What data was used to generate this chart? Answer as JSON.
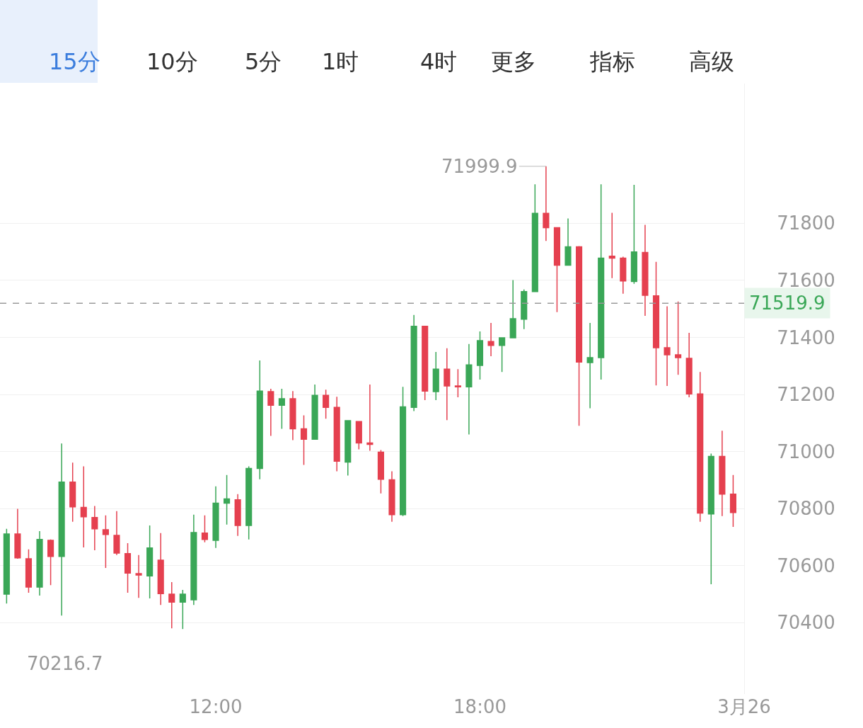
{
  "chart_data": {
    "type": "candlestick",
    "annotations": [
      "15分",
      "10分",
      "5分",
      "1时",
      "4时",
      "更多",
      "指标",
      "高级",
      {
        "text": "71999.9",
        "x": 19.5,
        "y": 71999.9
      },
      "70216.7"
    ],
    "x": [
      7.25,
      7.5,
      7.75,
      8,
      8.25,
      8.5,
      8.75,
      9,
      9.25,
      9.5,
      9.75,
      10,
      10.25,
      10.5,
      10.75,
      11,
      11.25,
      11.5,
      11.75,
      12,
      12.25,
      12.5,
      12.75,
      13,
      13.25,
      13.5,
      13.75,
      14,
      14.25,
      14.5,
      14.75,
      15,
      15.25,
      15.5,
      15.75,
      16,
      16.25,
      16.5,
      16.75,
      17,
      17.25,
      17.5,
      17.75,
      18,
      18.25,
      18.5,
      18.75,
      19,
      19.25,
      19.5,
      19.75,
      20,
      20.25,
      20.5,
      20.75,
      21,
      21.25,
      21.5,
      21.75,
      22,
      22.25,
      22.5,
      22.75,
      23,
      23.25,
      23.5,
      23.75
    ],
    "ohlc": [
      [
        70500,
        70729,
        70467,
        70711
      ],
      [
        70711,
        70799,
        70624,
        70627
      ],
      [
        70624,
        70657,
        70505,
        70525
      ],
      [
        70525,
        70721,
        70495,
        70692
      ],
      [
        70689,
        70692,
        70532,
        70632
      ],
      [
        70632,
        71028,
        70425,
        70893
      ],
      [
        70893,
        70961,
        70754,
        70806
      ],
      [
        70804,
        70948,
        70664,
        70771
      ],
      [
        70769,
        70809,
        70654,
        70729
      ],
      [
        70726,
        70776,
        70592,
        70709
      ],
      [
        70706,
        70791,
        70637,
        70644
      ],
      [
        70642,
        70679,
        70505,
        70574
      ],
      [
        70572,
        70637,
        70487,
        70567
      ],
      [
        70564,
        70741,
        70485,
        70662
      ],
      [
        70619,
        70714,
        70462,
        70502
      ],
      [
        70500,
        70542,
        70380,
        70472
      ],
      [
        70472,
        70515,
        70378,
        70500
      ],
      [
        70480,
        70779,
        70462,
        70716
      ],
      [
        70714,
        70776,
        70682,
        70692
      ],
      [
        70689,
        70878,
        70662,
        70819
      ],
      [
        70819,
        70918,
        70744,
        70834
      ],
      [
        70831,
        70851,
        70704,
        70741
      ],
      [
        70741,
        70948,
        70692,
        70941
      ],
      [
        70941,
        71319,
        70903,
        71212
      ],
      [
        71210,
        71220,
        71055,
        71162
      ],
      [
        71162,
        71220,
        71080,
        71185
      ],
      [
        71185,
        71212,
        71040,
        71080
      ],
      [
        71080,
        71127,
        70953,
        71043
      ],
      [
        71043,
        71235,
        71043,
        71197
      ],
      [
        71197,
        71217,
        71115,
        71155
      ],
      [
        71155,
        71192,
        70931,
        70966
      ],
      [
        70963,
        71108,
        70916,
        71108
      ],
      [
        71105,
        71105,
        71008,
        71030
      ],
      [
        71030,
        71235,
        71003,
        71025
      ],
      [
        70998,
        71005,
        70853,
        70903
      ],
      [
        70901,
        70931,
        70754,
        70779
      ],
      [
        70779,
        71227,
        70774,
        71157
      ],
      [
        71155,
        71479,
        71142,
        71439
      ],
      [
        71439,
        71439,
        71180,
        71212
      ],
      [
        71210,
        71349,
        71180,
        71289
      ],
      [
        71289,
        71362,
        71110,
        71230
      ],
      [
        71230,
        71289,
        71190,
        71227
      ],
      [
        71227,
        71377,
        71060,
        71304
      ],
      [
        71302,
        71421,
        71252,
        71389
      ],
      [
        71386,
        71451,
        71334,
        71372
      ],
      [
        71372,
        71399,
        71279,
        71399
      ],
      [
        71399,
        71601,
        71399,
        71466
      ],
      [
        71464,
        71568,
        71429,
        71561
      ],
      [
        71561,
        71937,
        71561,
        71835
      ],
      [
        71835,
        71999.9,
        71738,
        71785
      ],
      [
        71785,
        71785,
        71489,
        71653
      ],
      [
        71653,
        71817,
        71653,
        71718
      ],
      [
        71718,
        71720,
        71090,
        71314
      ],
      [
        71312,
        71451,
        71152,
        71329
      ],
      [
        71329,
        71937,
        71252,
        71678
      ],
      [
        71685,
        71837,
        71608,
        71678
      ],
      [
        71678,
        71683,
        71553,
        71598
      ],
      [
        71596,
        71935,
        71588,
        71700
      ],
      [
        71698,
        71795,
        71476,
        71548
      ],
      [
        71546,
        71665,
        71232,
        71364
      ],
      [
        71364,
        71509,
        71230,
        71339
      ],
      [
        71339,
        71526,
        71269,
        71329
      ],
      [
        71327,
        71416,
        71190,
        71202
      ],
      [
        71202,
        71279,
        70754,
        70784
      ],
      [
        70781,
        70993,
        70535,
        70983
      ],
      [
        70983,
        71073,
        70774,
        70851
      ],
      [
        70851,
        70918,
        70736,
        70786
      ]
    ],
    "colors": [
      "#3aa757",
      "#e5404f",
      "#e5404f",
      "#3aa757",
      "#e5404f",
      "#3aa757",
      "#e5404f",
      "#e5404f",
      "#e5404f",
      "#e5404f",
      "#e5404f",
      "#e5404f",
      "#e5404f",
      "#3aa757",
      "#e5404f",
      "#e5404f",
      "#3aa757",
      "#3aa757",
      "#e5404f",
      "#3aa757",
      "#3aa757",
      "#e5404f",
      "#3aa757",
      "#3aa757",
      "#e5404f",
      "#3aa757",
      "#e5404f",
      "#e5404f",
      "#3aa757",
      "#e5404f",
      "#e5404f",
      "#3aa757",
      "#e5404f",
      "#e5404f",
      "#e5404f",
      "#e5404f",
      "#3aa757",
      "#3aa757",
      "#e5404f",
      "#3aa757",
      "#e5404f",
      "#e5404f",
      "#3aa757",
      "#3aa757",
      "#e5404f",
      "#3aa757",
      "#3aa757",
      "#3aa757",
      "#3aa757",
      "#e5404f",
      "#e5404f",
      "#3aa757",
      "#e5404f",
      "#3aa757",
      "#3aa757",
      "#e5404f",
      "#e5404f",
      "#3aa757",
      "#e5404f",
      "#e5404f",
      "#e5404f",
      "#e5404f",
      "#e5404f",
      "#e5404f",
      "#3aa757",
      "#e5404f",
      "#e5404f"
    ],
    "xlim": [
      7.1,
      24.0
    ],
    "xticks": [
      {
        "value": 12,
        "label": "12:00"
      },
      {
        "value": 18,
        "label": "18:00"
      },
      {
        "value": 24,
        "label": "3月26"
      }
    ],
    "ylim": [
      70150,
      72290
    ],
    "yticks": [
      70400,
      70600,
      70800,
      71000,
      71200,
      71400,
      71600,
      71800
    ],
    "ref_lines": [
      {
        "axis": "y",
        "value": 71519.9,
        "label": "71519.9",
        "color": "#999999",
        "line_style": "dashed"
      }
    ],
    "grid": "y",
    "legend": false
  }
}
